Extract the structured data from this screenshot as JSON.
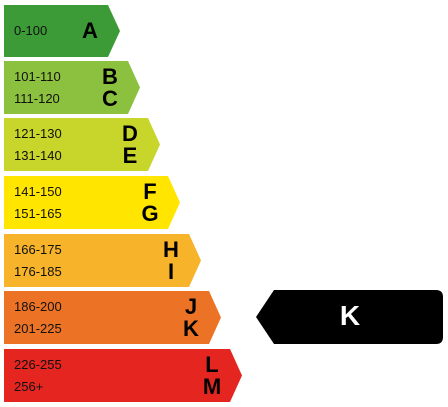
{
  "bands": [
    {
      "rows": [
        {
          "range": "0-100",
          "letter": "A"
        }
      ],
      "color": "#3c9b37"
    },
    {
      "rows": [
        {
          "range": "101-110",
          "letter": "B"
        },
        {
          "range": "111-120",
          "letter": "C"
        }
      ],
      "color": "#8cc13f"
    },
    {
      "rows": [
        {
          "range": "121-130",
          "letter": "D"
        },
        {
          "range": "131-140",
          "letter": "E"
        }
      ],
      "color": "#c8d52a"
    },
    {
      "rows": [
        {
          "range": "141-150",
          "letter": "F"
        },
        {
          "range": "151-165",
          "letter": "G"
        }
      ],
      "color": "#ffe500"
    },
    {
      "rows": [
        {
          "range": "166-175",
          "letter": "H"
        },
        {
          "range": "176-185",
          "letter": "I"
        }
      ],
      "color": "#f7b329"
    },
    {
      "rows": [
        {
          "range": "186-200",
          "letter": "J"
        },
        {
          "range": "201-225",
          "letter": "K"
        }
      ],
      "color": "#ec7325"
    },
    {
      "rows": [
        {
          "range": "226-255",
          "letter": "L"
        },
        {
          "range": "256+",
          "letter": "M"
        }
      ],
      "color": "#e42520"
    }
  ],
  "indicator": {
    "letter": "K",
    "color": "#000000",
    "text_color": "#ffffff"
  }
}
